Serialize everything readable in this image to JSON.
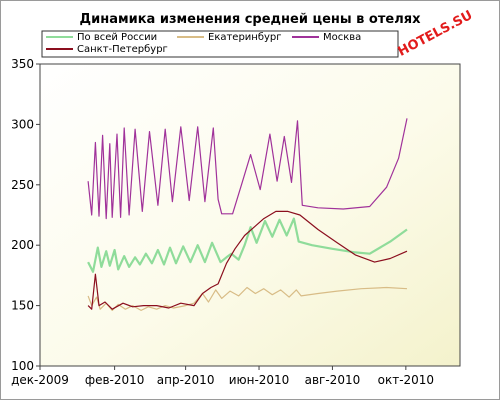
{
  "chart_data": {
    "type": "line",
    "title": "Динамика изменения средней цены в отелях",
    "watermark": "HOTELS.SU",
    "xlabel": "",
    "ylabel": "",
    "ylim": [
      100,
      350
    ],
    "yticks": [
      100,
      150,
      200,
      250,
      300,
      350
    ],
    "xlim": [
      "2009-12-01",
      "2010-11-15"
    ],
    "xticks": [
      {
        "date": "2009-12-01",
        "label": "дек-2009"
      },
      {
        "date": "2010-02-01",
        "label": "фев-2010"
      },
      {
        "date": "2010-04-01",
        "label": "апр-2010"
      },
      {
        "date": "2010-06-01",
        "label": "июн-2010"
      },
      {
        "date": "2010-08-01",
        "label": "авг-2010"
      },
      {
        "date": "2010-10-01",
        "label": "окт-2010"
      }
    ],
    "grid": false,
    "legend_position": "top",
    "series": [
      {
        "name": "По всей России",
        "color": "#8fdc9a",
        "points": [
          [
            "2010-01-10",
            186
          ],
          [
            "2010-01-14",
            178
          ],
          [
            "2010-01-18",
            198
          ],
          [
            "2010-01-21",
            182
          ],
          [
            "2010-01-25",
            195
          ],
          [
            "2010-01-28",
            183
          ],
          [
            "2010-02-01",
            196
          ],
          [
            "2010-02-04",
            180
          ],
          [
            "2010-02-09",
            191
          ],
          [
            "2010-02-13",
            182
          ],
          [
            "2010-02-18",
            190
          ],
          [
            "2010-02-22",
            184
          ],
          [
            "2010-02-27",
            193
          ],
          [
            "2010-03-04",
            185
          ],
          [
            "2010-03-09",
            196
          ],
          [
            "2010-03-14",
            184
          ],
          [
            "2010-03-19",
            198
          ],
          [
            "2010-03-24",
            185
          ],
          [
            "2010-03-30",
            199
          ],
          [
            "2010-04-05",
            186
          ],
          [
            "2010-04-11",
            200
          ],
          [
            "2010-04-17",
            186
          ],
          [
            "2010-04-23",
            202
          ],
          [
            "2010-04-30",
            186
          ],
          [
            "2010-05-05",
            190
          ],
          [
            "2010-05-09",
            193
          ],
          [
            "2010-05-15",
            188
          ],
          [
            "2010-05-20",
            200
          ],
          [
            "2010-05-25",
            215
          ],
          [
            "2010-05-30",
            202
          ],
          [
            "2010-06-06",
            220
          ],
          [
            "2010-06-12",
            207
          ],
          [
            "2010-06-18",
            221
          ],
          [
            "2010-06-24",
            208
          ],
          [
            "2010-06-30",
            222
          ],
          [
            "2010-07-04",
            203
          ],
          [
            "2010-07-15",
            200
          ],
          [
            "2010-08-01",
            197
          ],
          [
            "2010-08-20",
            194
          ],
          [
            "2010-09-01",
            193
          ],
          [
            "2010-09-18",
            203
          ],
          [
            "2010-10-02",
            213
          ]
        ]
      },
      {
        "name": "Екатеринбург",
        "color": "#d8bc86",
        "points": [
          [
            "2010-01-10",
            158
          ],
          [
            "2010-01-13",
            150
          ],
          [
            "2010-01-17",
            157
          ],
          [
            "2010-01-20",
            147
          ],
          [
            "2010-01-25",
            152
          ],
          [
            "2010-01-30",
            146
          ],
          [
            "2010-02-04",
            151
          ],
          [
            "2010-02-10",
            147
          ],
          [
            "2010-02-16",
            150
          ],
          [
            "2010-02-23",
            146
          ],
          [
            "2010-03-01",
            149
          ],
          [
            "2010-03-08",
            147
          ],
          [
            "2010-03-15",
            150
          ],
          [
            "2010-03-22",
            148
          ],
          [
            "2010-04-01",
            150
          ],
          [
            "2010-04-08",
            152
          ],
          [
            "2010-04-15",
            160
          ],
          [
            "2010-04-20",
            153
          ],
          [
            "2010-04-26",
            163
          ],
          [
            "2010-05-01",
            156
          ],
          [
            "2010-05-08",
            162
          ],
          [
            "2010-05-15",
            158
          ],
          [
            "2010-05-22",
            165
          ],
          [
            "2010-05-29",
            160
          ],
          [
            "2010-06-05",
            164
          ],
          [
            "2010-06-12",
            159
          ],
          [
            "2010-06-19",
            163
          ],
          [
            "2010-06-26",
            157
          ],
          [
            "2010-07-02",
            163
          ],
          [
            "2010-07-06",
            158
          ],
          [
            "2010-07-20",
            160
          ],
          [
            "2010-08-05",
            162
          ],
          [
            "2010-08-25",
            164
          ],
          [
            "2010-09-15",
            165
          ],
          [
            "2010-10-02",
            164
          ]
        ]
      },
      {
        "name": "Москва",
        "color": "#a0329a",
        "points": [
          [
            "2010-01-10",
            253
          ],
          [
            "2010-01-13",
            225
          ],
          [
            "2010-01-16",
            285
          ],
          [
            "2010-01-19",
            224
          ],
          [
            "2010-01-22",
            291
          ],
          [
            "2010-01-25",
            222
          ],
          [
            "2010-01-28",
            284
          ],
          [
            "2010-01-30",
            223
          ],
          [
            "2010-02-03",
            292
          ],
          [
            "2010-02-06",
            223
          ],
          [
            "2010-02-09",
            297
          ],
          [
            "2010-02-13",
            225
          ],
          [
            "2010-02-18",
            296
          ],
          [
            "2010-02-24",
            228
          ],
          [
            "2010-03-02",
            294
          ],
          [
            "2010-03-09",
            233
          ],
          [
            "2010-03-15",
            296
          ],
          [
            "2010-03-21",
            236
          ],
          [
            "2010-03-28",
            298
          ],
          [
            "2010-04-04",
            237
          ],
          [
            "2010-04-11",
            298
          ],
          [
            "2010-04-17",
            236
          ],
          [
            "2010-04-24",
            297
          ],
          [
            "2010-04-28",
            238
          ],
          [
            "2010-05-01",
            226
          ],
          [
            "2010-05-10",
            226
          ],
          [
            "2010-05-18",
            252
          ],
          [
            "2010-05-25",
            275
          ],
          [
            "2010-06-02",
            246
          ],
          [
            "2010-06-10",
            292
          ],
          [
            "2010-06-16",
            253
          ],
          [
            "2010-06-22",
            290
          ],
          [
            "2010-06-28",
            252
          ],
          [
            "2010-07-03",
            303
          ],
          [
            "2010-07-07",
            233
          ],
          [
            "2010-07-20",
            231
          ],
          [
            "2010-08-10",
            230
          ],
          [
            "2010-09-01",
            232
          ],
          [
            "2010-09-15",
            248
          ],
          [
            "2010-09-25",
            272
          ],
          [
            "2010-10-02",
            305
          ]
        ]
      },
      {
        "name": "Санкт-Петербург",
        "color": "#8b0e1e",
        "points": [
          [
            "2010-01-10",
            150
          ],
          [
            "2010-01-13",
            147
          ],
          [
            "2010-01-16",
            176
          ],
          [
            "2010-01-19",
            150
          ],
          [
            "2010-01-24",
            153
          ],
          [
            "2010-01-30",
            147
          ],
          [
            "2010-02-08",
            152
          ],
          [
            "2010-02-16",
            149
          ],
          [
            "2010-02-25",
            150
          ],
          [
            "2010-03-08",
            150
          ],
          [
            "2010-03-18",
            148
          ],
          [
            "2010-03-28",
            152
          ],
          [
            "2010-04-08",
            150
          ],
          [
            "2010-04-15",
            160
          ],
          [
            "2010-04-22",
            165
          ],
          [
            "2010-04-28",
            168
          ],
          [
            "2010-05-05",
            185
          ],
          [
            "2010-05-12",
            197
          ],
          [
            "2010-05-20",
            208
          ],
          [
            "2010-05-28",
            215
          ],
          [
            "2010-06-05",
            222
          ],
          [
            "2010-06-15",
            228
          ],
          [
            "2010-06-25",
            228
          ],
          [
            "2010-07-05",
            225
          ],
          [
            "2010-07-20",
            213
          ],
          [
            "2010-08-05",
            202
          ],
          [
            "2010-08-20",
            192
          ],
          [
            "2010-09-05",
            186
          ],
          [
            "2010-09-18",
            189
          ],
          [
            "2010-10-02",
            195
          ]
        ]
      }
    ]
  }
}
